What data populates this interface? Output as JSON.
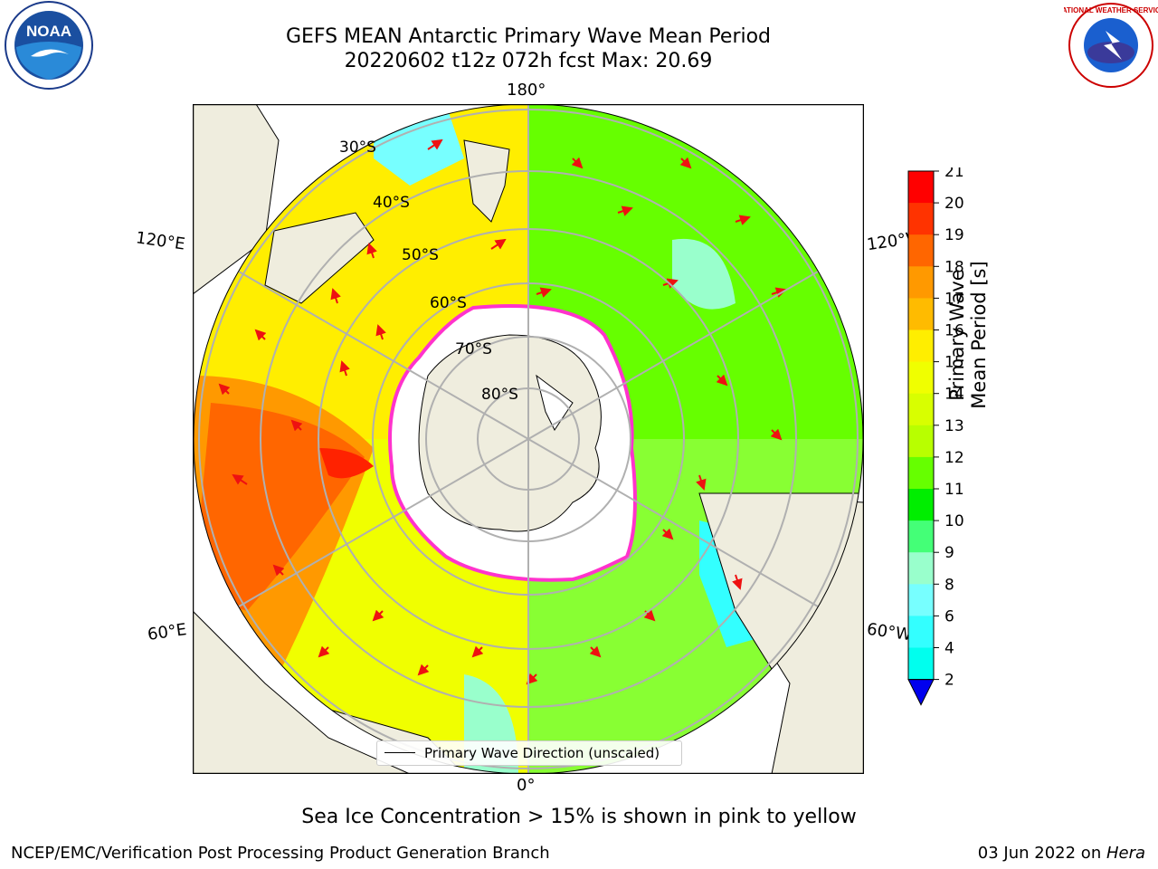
{
  "header": {
    "title_line1": "GEFS MEAN Antarctic Primary Wave Mean Period",
    "title_line2": "20220602 t12z 072h fcst   Max: 20.69"
  },
  "logos": {
    "noaa_text": "NOAA",
    "nws_text": "NATIONAL WEATHER SERVICE"
  },
  "map": {
    "longitude_labels": {
      "top": "180°",
      "bottom": "0°",
      "upper_left": "120°E",
      "upper_right": "120°W",
      "lower_left": "60°E",
      "lower_right": "60°W"
    },
    "latitude_labels": [
      "30°S",
      "40°S",
      "50°S",
      "60°S",
      "70°S",
      "80°S"
    ]
  },
  "colorbar": {
    "label": "Primary Wave Mean Period [s]",
    "ticks": [
      "21",
      "20",
      "19",
      "18",
      "17",
      "16",
      "15",
      "14",
      "13",
      "12",
      "11",
      "10",
      "9",
      "8",
      "6",
      "4",
      "2"
    ],
    "colors": [
      "#ff0000",
      "#ff3300",
      "#ff6600",
      "#ff9900",
      "#ffbb00",
      "#ffee00",
      "#f0ff00",
      "#d8ff00",
      "#b8ff00",
      "#66ff00",
      "#00ee00",
      "#44ff77",
      "#99ffcc",
      "#77ffff",
      "#33ffff",
      "#00ffee",
      "#0077ff"
    ],
    "extend_color": "#0000ee"
  },
  "legend": {
    "label": "Primary Wave Direction (unscaled)"
  },
  "subtitle": "Sea Ice Concentration > 15% is shown in pink to yellow",
  "footer": {
    "left": "NCEP/EMC/Verification Post Processing Product Generation Branch",
    "right_date": "03 Jun 2022 on ",
    "right_host": "Hera"
  }
}
